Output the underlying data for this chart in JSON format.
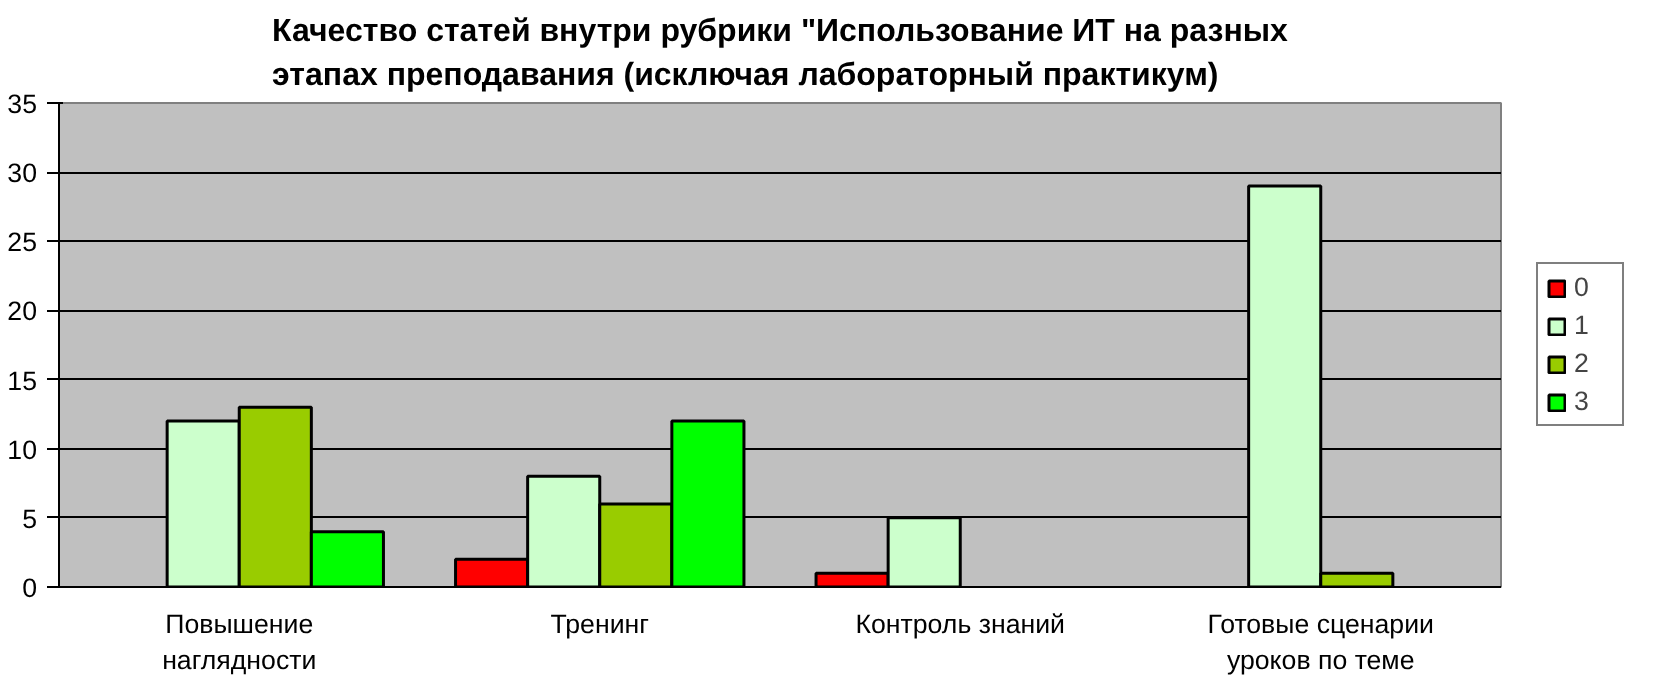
{
  "chart_data": {
    "type": "bar",
    "title": "Качество статей внутри рубрики \"Использование ИТ на разных этапах преподавания (исключая лабораторный практикум)",
    "categories": [
      "Повышение наглядности",
      "Тренинг",
      "Контроль знаний",
      "Готовые сценарии уроков по теме"
    ],
    "series": [
      {
        "name": "0",
        "color": "#ff0000",
        "values": [
          null,
          2,
          1,
          null
        ]
      },
      {
        "name": "1",
        "color": "#ccffcc",
        "values": [
          12,
          8,
          5,
          29
        ]
      },
      {
        "name": "2",
        "color": "#99cc00",
        "values": [
          13,
          6,
          null,
          1
        ]
      },
      {
        "name": "3",
        "color": "#00ff00",
        "values": [
          4,
          12,
          null,
          null
        ]
      }
    ],
    "ylim": [
      0,
      35
    ],
    "yticks": [
      0,
      5,
      10,
      15,
      20,
      25,
      30,
      35
    ],
    "grid": "y",
    "legend": "right"
  }
}
